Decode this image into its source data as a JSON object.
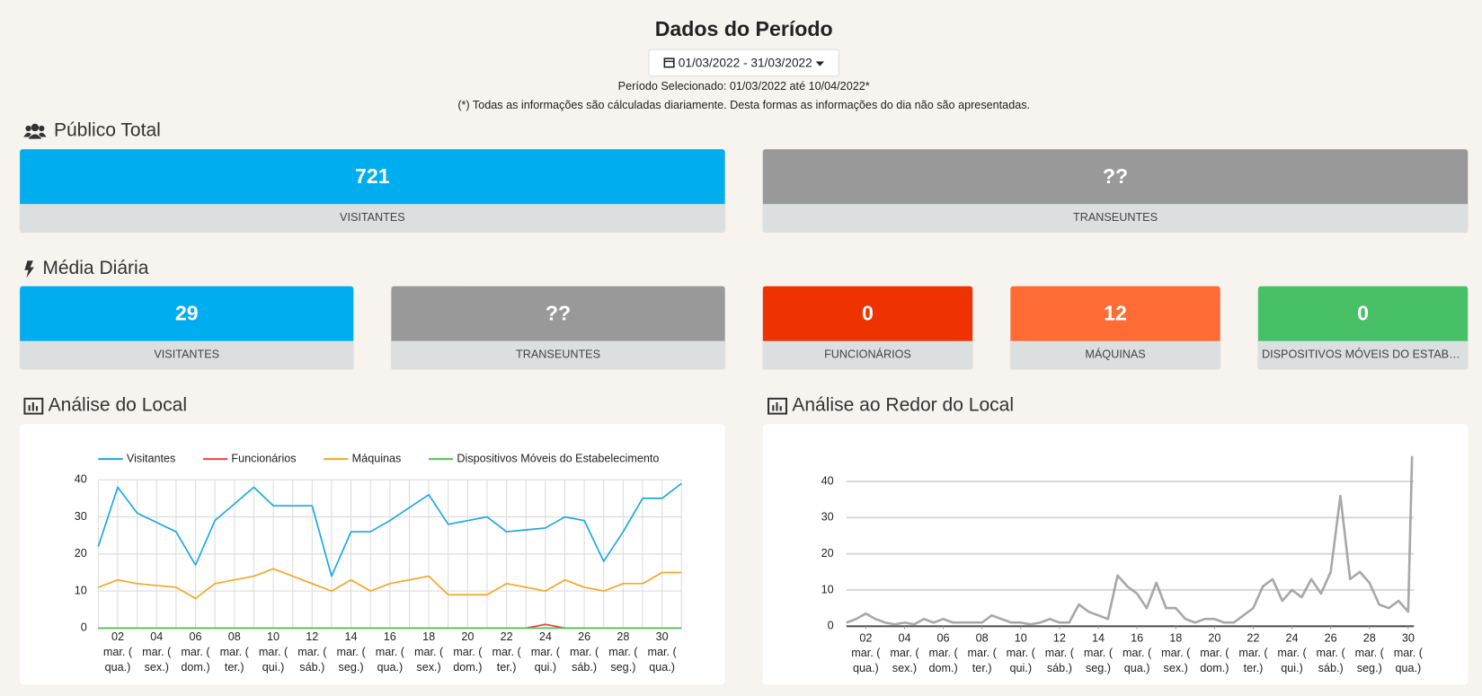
{
  "header": {
    "title": "Dados do Período",
    "date_range": "01/03/2022 - 31/03/2022",
    "selected_period": "Período Selecionado: 01/03/2022 até 10/04/2022*",
    "note": "(*) Todas as informações são cálculadas diariamente. Desta formas as informações do dia não são apresentadas."
  },
  "publico_total": {
    "title": "Público Total",
    "cards": [
      {
        "value": 721,
        "label": "VISITANTES",
        "color": "#00adef"
      },
      {
        "value": "??",
        "label": "TRANSEUNTES",
        "color": "#999999"
      }
    ]
  },
  "media_diaria": {
    "title": "Média Diária",
    "cards": [
      {
        "value": 29,
        "label": "VISITANTES",
        "color": "#00adef"
      },
      {
        "value": "??",
        "label": "TRANSEUNTES",
        "color": "#999999"
      },
      {
        "value": 0,
        "label": "FUNCIONÁRIOS",
        "color": "#ee3300"
      },
      {
        "value": 12,
        "label": "MÁQUINAS",
        "color": "#ff6b35"
      },
      {
        "value": 0,
        "label": "DISPOSITIVOS MÓVEIS DO ESTABELECIMENTO",
        "color": "#47c066"
      }
    ]
  },
  "analise_local": {
    "title": "Análise do Local"
  },
  "analise_redor": {
    "title": "Análise ao Redor do Local"
  },
  "chart_data": [
    {
      "type": "line",
      "categories": [
        null,
        [
          "02",
          "mar. (",
          "qua.)"
        ],
        null,
        [
          "04",
          "mar. (",
          "sex.)"
        ],
        null,
        [
          "06",
          "mar. (",
          "dom.)"
        ],
        null,
        [
          "08",
          "mar. (",
          "ter.)"
        ],
        null,
        [
          "10",
          "mar. (",
          "qui.)"
        ],
        null,
        [
          "12",
          "mar. (",
          "sáb.)"
        ],
        null,
        [
          "14",
          "mar. (",
          "seg.)"
        ],
        null,
        [
          "16",
          "mar. (",
          "qua.)"
        ],
        null,
        [
          "18",
          "mar. (",
          "sex.)"
        ],
        null,
        [
          "20",
          "mar. (",
          "dom.)"
        ],
        null,
        [
          "22",
          "mar. (",
          "ter.)"
        ],
        null,
        [
          "24",
          "mar. (",
          "qui.)"
        ],
        null,
        [
          "26",
          "mar. (",
          "sáb.)"
        ],
        null,
        [
          "28",
          "mar. (",
          "seg.)"
        ],
        null,
        [
          "30",
          "mar. (",
          "qua.)"
        ],
        null
      ],
      "series": [
        {
          "name": "Visitantes",
          "color": "#1ba8e2",
          "values": [
            22,
            38,
            31,
            28.5,
            26,
            17,
            29,
            33.5,
            38,
            33,
            33,
            33,
            14,
            26,
            26,
            29,
            32.5,
            36,
            28,
            29,
            30,
            26,
            26.5,
            27,
            30,
            29,
            18,
            26,
            35,
            35,
            39
          ]
        },
        {
          "name": "Funcionários",
          "color": "#e8473e",
          "values": [
            0,
            0,
            0,
            0,
            0,
            0,
            0,
            0,
            0,
            0,
            0,
            0,
            0,
            0,
            0,
            0,
            0,
            0,
            0,
            0,
            0,
            0,
            0,
            1,
            0,
            0,
            0,
            0,
            0,
            0,
            0
          ]
        },
        {
          "name": "Máquinas",
          "color": "#f5a623",
          "values": [
            11,
            13,
            12,
            11.5,
            11,
            8,
            12,
            13,
            14,
            16,
            14,
            12,
            10,
            13,
            10,
            12,
            13,
            14,
            9,
            9,
            9,
            12,
            11,
            10,
            13,
            11,
            10,
            12,
            12,
            15,
            15
          ]
        },
        {
          "name": "Dispositivos Móveis do Estabelecimento",
          "color": "#4fc35d",
          "values": [
            0,
            0,
            0,
            0,
            0,
            0,
            0,
            0,
            0,
            0,
            0,
            0,
            0,
            0,
            0,
            0,
            0,
            0,
            0,
            0,
            0,
            0,
            0,
            0,
            0,
            0,
            0,
            0,
            0,
            0,
            0
          ]
        }
      ],
      "ylim": [
        0,
        40
      ],
      "yticks": [
        0,
        10,
        20,
        30,
        40
      ],
      "grid": true,
      "legend": "top"
    },
    {
      "type": "line",
      "x": [
        1,
        1.5,
        2,
        2.5,
        3,
        3.5,
        4,
        4.5,
        5,
        5.5,
        6,
        6.5,
        7,
        7.5,
        8,
        8.5,
        9,
        9.5,
        10,
        10.5,
        11,
        11.5,
        12,
        12.5,
        13,
        13.5,
        14,
        14.5,
        15,
        15.5,
        16,
        16.5,
        17,
        17.5,
        18,
        18.5,
        19,
        19.5,
        20,
        20.5,
        21,
        21.5,
        22,
        22.5,
        23,
        23.5,
        24,
        24.5,
        25,
        25.5,
        26,
        26.5,
        27,
        27.5,
        28,
        28.5,
        29,
        29.5,
        30,
        30.2
      ],
      "series": [
        {
          "color": "#999999",
          "values": [
            1,
            2,
            3.5,
            2,
            1,
            0.5,
            1,
            0.5,
            2,
            1,
            2,
            1,
            1,
            1,
            1,
            3,
            2,
            1,
            1,
            0.5,
            1,
            2,
            1,
            1,
            6,
            4,
            3,
            2,
            14,
            11,
            9,
            5,
            12,
            5,
            5,
            2,
            1,
            2,
            2,
            1,
            1,
            3,
            5,
            11,
            13,
            7,
            10,
            8,
            13,
            9,
            15,
            36,
            13,
            15,
            12,
            6,
            5,
            7,
            4,
            47
          ]
        }
      ],
      "xlim": [
        1,
        30.3
      ],
      "xticks": [
        {
          "value": 2,
          "label": [
            "02",
            "mar. (",
            "qua.)"
          ]
        },
        {
          "value": 4,
          "label": [
            "04",
            "mar. (",
            "sex.)"
          ]
        },
        {
          "value": 6,
          "label": [
            "06",
            "mar. (",
            "dom.)"
          ]
        },
        {
          "value": 8,
          "label": [
            "08",
            "mar. (",
            "ter.)"
          ]
        },
        {
          "value": 10,
          "label": [
            "10",
            "mar. (",
            "qui.)"
          ]
        },
        {
          "value": 12,
          "label": [
            "12",
            "mar. (",
            "sáb.)"
          ]
        },
        {
          "value": 14,
          "label": [
            "14",
            "mar. (",
            "seg.)"
          ]
        },
        {
          "value": 16,
          "label": [
            "16",
            "mar. (",
            "qua.)"
          ]
        },
        {
          "value": 18,
          "label": [
            "18",
            "mar. (",
            "sex.)"
          ]
        },
        {
          "value": 20,
          "label": [
            "20",
            "mar. (",
            "dom.)"
          ]
        },
        {
          "value": 22,
          "label": [
            "22",
            "mar. (",
            "ter.)"
          ]
        },
        {
          "value": 24,
          "label": [
            "24",
            "mar. (",
            "qui.)"
          ]
        },
        {
          "value": 26,
          "label": [
            "26",
            "mar. (",
            "sáb.)"
          ]
        },
        {
          "value": 28,
          "label": [
            "28",
            "mar. (",
            "seg.)"
          ]
        },
        {
          "value": 30,
          "label": [
            "30",
            "mar. (",
            "qua.)"
          ]
        }
      ],
      "ylim": [
        0,
        48
      ],
      "yticks": [
        0,
        10,
        20,
        30,
        40
      ],
      "grid": true
    }
  ]
}
